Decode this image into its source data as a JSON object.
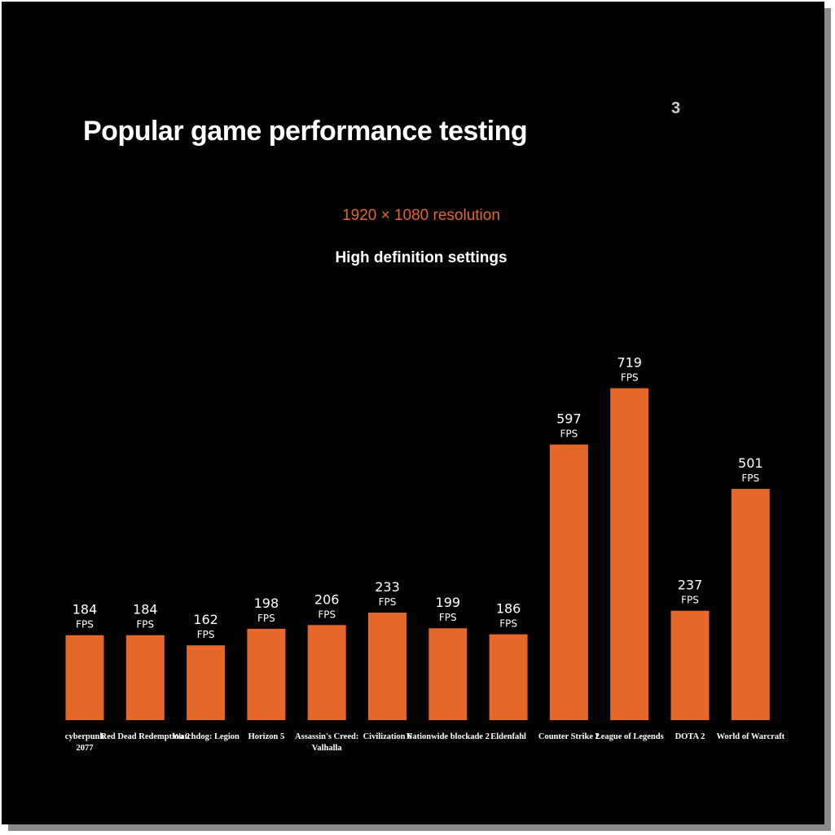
{
  "header": {
    "title": "Popular game performance testing",
    "resolution": "1920 × 1080 resolution",
    "settings": "High definition settings",
    "corner_mark": "3"
  },
  "colors": {
    "bar": "#e5672a",
    "background": "#030303",
    "text": "#ffffff"
  },
  "chart_data": {
    "type": "bar",
    "title": "Popular game performance testing",
    "subtitle": "1920 × 1080 resolution",
    "xlabel": "",
    "ylabel": "",
    "unit": "FPS",
    "categories": [
      [
        "cyberpunk",
        "2077"
      ],
      [
        "Red Dead Redemption 2"
      ],
      [
        "Watchdog: Legion"
      ],
      [
        "Horizon 5"
      ],
      [
        "Assassin's Creed:",
        "Valhalla"
      ],
      [
        "Civilization 6"
      ],
      [
        "Nationwide blockade 2"
      ],
      [
        "Eldenfahl"
      ],
      [
        "Counter Strike 2"
      ],
      [
        "League of Legends"
      ],
      [
        "DOTA 2"
      ],
      [
        "World of Warcraft"
      ]
    ],
    "values": [
      184,
      184,
      162,
      198,
      206,
      233,
      199,
      186,
      597,
      719,
      237,
      501
    ],
    "ylim": [
      0,
      720
    ],
    "grid": false,
    "legend": "none"
  }
}
